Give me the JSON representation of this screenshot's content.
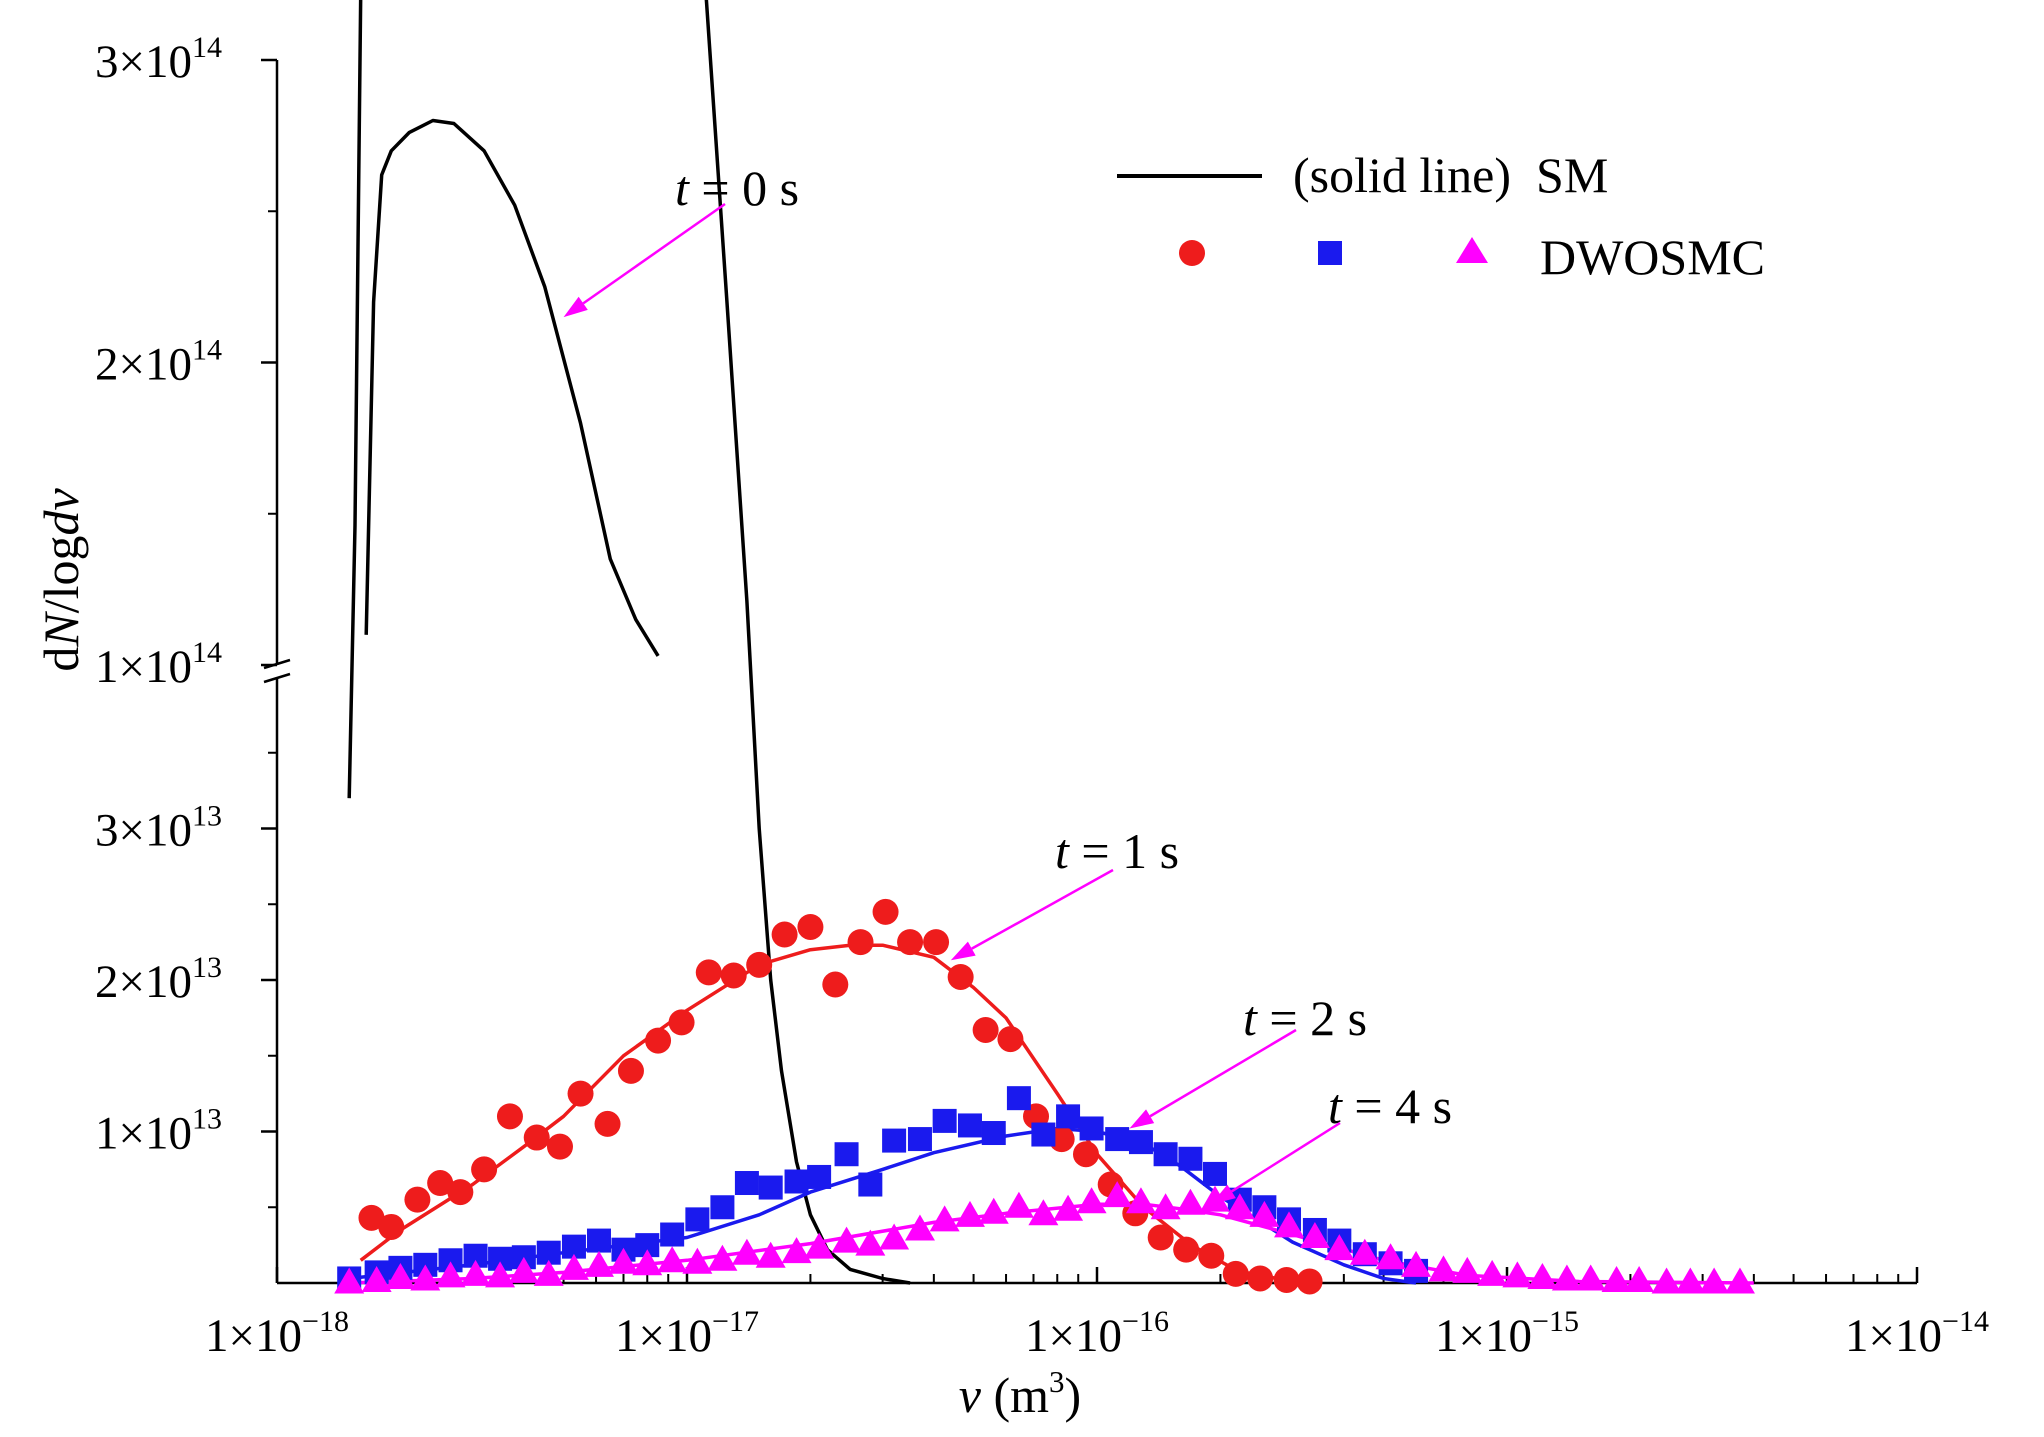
{
  "chart_data": {
    "type": "scatter",
    "xlabel": "v (m3)",
    "xlabel_parts": {
      "var": "v",
      "unit_open": " (m",
      "unit_exp": "3",
      "unit_close": ")"
    },
    "ylabel": "dN/logdv",
    "ylabel_parts": {
      "a": "d",
      "b": "N",
      "c": "/log",
      "d": "d",
      "e": "v"
    },
    "x_scale": "log",
    "xlim": [
      1e-18,
      1e-14
    ],
    "y_axis_broken": true,
    "y_break_at": 100000000000000.0,
    "ylim_lower": [
      0,
      40000000000000.0
    ],
    "ylim_upper": [
      100000000000000.0,
      300000000000000.0
    ],
    "x_ticks": [
      {
        "value": 1e-18,
        "base": "1×10",
        "exp": "−18"
      },
      {
        "value": 1e-17,
        "base": "1×10",
        "exp": "−17"
      },
      {
        "value": 1e-16,
        "base": "1×10",
        "exp": "−16"
      },
      {
        "value": 1e-15,
        "base": "1×10",
        "exp": "−15"
      },
      {
        "value": 1e-14,
        "base": "1×10",
        "exp": "−14"
      }
    ],
    "y_ticks_lower": [
      {
        "value": 10000000000000.0,
        "base": "1×10",
        "exp": "13"
      },
      {
        "value": 20000000000000.0,
        "base": "2×10",
        "exp": "13"
      },
      {
        "value": 30000000000000.0,
        "base": "3×10",
        "exp": "13"
      }
    ],
    "y_ticks_upper": [
      {
        "value": 100000000000000.0,
        "base": "1×10",
        "exp": "14"
      },
      {
        "value": 200000000000000.0,
        "base": "2×10",
        "exp": "14"
      },
      {
        "value": 300000000000000.0,
        "base": "3×10",
        "exp": "14"
      }
    ],
    "legend": {
      "line_label": "(solid line)  SM",
      "marker_label": "DWOSMC",
      "position": "top-right"
    },
    "lines": [
      {
        "name": "SM t = 0 s",
        "color": "#000000",
        "points": [
          [
            1.5e-18,
            32000000000000.0
          ],
          [
            1.55e-18,
            50000000000000.0
          ],
          [
            1.6e-18,
            85000000000000.0
          ],
          [
            1.65e-18,
            110000000000000.0
          ],
          [
            1.72e-18,
            220000000000000.0
          ],
          [
            1.8e-18,
            262000000000000.0
          ],
          [
            1.9e-18,
            270000000000000.0
          ],
          [
            2.1e-18,
            276000000000000.0
          ],
          [
            2.4e-18,
            280000000000000.0
          ],
          [
            2.7e-18,
            279000000000000.0
          ],
          [
            3.2e-18,
            270000000000000.0
          ],
          [
            3.8e-18,
            252000000000000.0
          ],
          [
            4.5e-18,
            225000000000000.0
          ],
          [
            5.5e-18,
            180000000000000.0
          ],
          [
            6.5e-18,
            135000000000000.0
          ],
          [
            7.5e-18,
            115000000000000.0
          ],
          [
            8.5e-18,
            103000000000000.0
          ],
          [
            9.5e-18,
            95000000000000.0
          ],
          [
            1.1e-17,
            87000000000000.0
          ],
          [
            1.25e-17,
            65000000000000.0
          ],
          [
            1.4e-17,
            45000000000000.0
          ],
          [
            1.5e-17,
            30000000000000.0
          ],
          [
            1.6e-17,
            20000000000000.0
          ],
          [
            1.7e-17,
            14000000000000.0
          ],
          [
            1.85e-17,
            8000000000000.0
          ],
          [
            2e-17,
            4500000000000.0
          ],
          [
            2.2e-17,
            2200000000000.0
          ],
          [
            2.5e-17,
            900000000000.0
          ],
          [
            3e-17,
            300000000000.0
          ],
          [
            3.5e-17,
            0
          ]
        ]
      },
      {
        "name": "SM t = 1 s",
        "color": "#ee1c1c",
        "points": [
          [
            1.6e-18,
            1500000000000.0
          ],
          [
            2e-18,
            3500000000000.0
          ],
          [
            3e-18,
            6500000000000.0
          ],
          [
            4e-18,
            9000000000000.0
          ],
          [
            5e-18,
            11000000000000.0
          ],
          [
            7e-18,
            15000000000000.0
          ],
          [
            1e-17,
            18000000000000.0
          ],
          [
            1.5e-17,
            21000000000000.0
          ],
          [
            2e-17,
            22000000000000.0
          ],
          [
            2.5e-17,
            22300000000000.0
          ],
          [
            3e-17,
            22300000000000.0
          ],
          [
            4e-17,
            21500000000000.0
          ],
          [
            5e-17,
            19500000000000.0
          ],
          [
            6e-17,
            17500000000000.0
          ],
          [
            8e-17,
            12500000000000.0
          ],
          [
            1e-16,
            8500000000000.0
          ],
          [
            1.3e-16,
            5000000000000.0
          ],
          [
            1.7e-16,
            2500000000000.0
          ],
          [
            2.2e-16,
            800000000000.0
          ],
          [
            3e-16,
            100000000000.0
          ],
          [
            3.5e-16,
            0
          ]
        ]
      },
      {
        "name": "SM t = 2 s",
        "color": "#1a1aee",
        "points": [
          [
            1.5e-18,
            300000000000.0
          ],
          [
            3e-18,
            1200000000000.0
          ],
          [
            5e-18,
            2000000000000.0
          ],
          [
            1e-17,
            3000000000000.0
          ],
          [
            1.5e-17,
            4500000000000.0
          ],
          [
            2e-17,
            6000000000000.0
          ],
          [
            3e-17,
            7500000000000.0
          ],
          [
            4e-17,
            8600000000000.0
          ],
          [
            6e-17,
            9700000000000.0
          ],
          [
            8e-17,
            10200000000000.0
          ],
          [
            1e-16,
            10000000000000.0
          ],
          [
            1.3e-16,
            9200000000000.0
          ],
          [
            1.6e-16,
            7700000000000.0
          ],
          [
            2e-16,
            5700000000000.0
          ],
          [
            3e-16,
            2700000000000.0
          ],
          [
            4e-16,
            1200000000000.0
          ],
          [
            5e-16,
            300000000000.0
          ],
          [
            6e-16,
            0
          ]
        ]
      },
      {
        "name": "SM t = 4 s",
        "color": "#ff00ff",
        "points": [
          [
            1.5e-18,
            0
          ],
          [
            3e-18,
            300000000000.0
          ],
          [
            5e-18,
            700000000000.0
          ],
          [
            1e-17,
            1500000000000.0
          ],
          [
            2e-17,
            2600000000000.0
          ],
          [
            4e-17,
            4000000000000.0
          ],
          [
            6e-17,
            4600000000000.0
          ],
          [
            1e-16,
            5200000000000.0
          ],
          [
            1.3e-16,
            5200000000000.0
          ],
          [
            1.6e-16,
            4900000000000.0
          ],
          [
            2e-16,
            4500000000000.0
          ],
          [
            3e-16,
            3200000000000.0
          ],
          [
            5e-16,
            1500000000000.0
          ],
          [
            8e-16,
            500000000000.0
          ],
          [
            1.5e-15,
            100000000000.0
          ],
          [
            4e-15,
            0
          ]
        ]
      }
    ],
    "series": [
      {
        "name": "DWOSMC t = 1 s",
        "marker": "circle",
        "color": "#ee1c1c",
        "x": [
          1.7e-18,
          1.9e-18,
          2.2e-18,
          2.5e-18,
          2.8e-18,
          3.2e-18,
          3.7e-18,
          4.3e-18,
          4.9e-18,
          5.5e-18,
          6.4e-18,
          7.3e-18,
          8.5e-18,
          9.7e-18,
          1.13e-17,
          1.3e-17,
          1.5e-17,
          1.73e-17,
          2e-17,
          2.3e-17,
          2.65e-17,
          3.05e-17,
          3.5e-17,
          4.05e-17,
          4.65e-17,
          5.35e-17,
          6.15e-17,
          7.1e-17,
          8.2e-17,
          9.4e-17,
          1.08e-16,
          1.24e-16,
          1.43e-16,
          1.65e-16,
          1.9e-16,
          2.18e-16,
          2.5e-16,
          2.9e-16,
          3.3e-16
        ],
        "y": [
          4300000000000.0,
          3700000000000.0,
          5500000000000.0,
          6600000000000.0,
          6000000000000.0,
          7500000000000.0,
          11000000000000.0,
          9600000000000.0,
          9000000000000.0,
          12500000000000.0,
          10500000000000.0,
          14000000000000.0,
          16000000000000.0,
          17200000000000.0,
          20500000000000.0,
          20300000000000.0,
          21000000000000.0,
          23000000000000.0,
          23500000000000.0,
          19700000000000.0,
          22500000000000.0,
          24500000000000.0,
          22500000000000.0,
          22500000000000.0,
          20200000000000.0,
          16700000000000.0,
          16100000000000.0,
          11000000000000.0,
          9500000000000.0,
          8500000000000.0,
          6500000000000.0,
          4600000000000.0,
          3000000000000.0,
          2200000000000.0,
          1800000000000.0,
          600000000000.0,
          300000000000.0,
          200000000000.0,
          100000000000.0
        ]
      },
      {
        "name": "DWOSMC t = 2 s",
        "marker": "square",
        "color": "#1a1aee",
        "x": [
          1.5e-18,
          1.75e-18,
          2e-18,
          2.3e-18,
          2.65e-18,
          3.05e-18,
          3.5e-18,
          4e-18,
          4.6e-18,
          5.3e-18,
          6.1e-18,
          7e-18,
          8e-18,
          9.2e-18,
          1.06e-17,
          1.22e-17,
          1.4e-17,
          1.6e-17,
          1.85e-17,
          2.1e-17,
          2.45e-17,
          2.8e-17,
          3.2e-17,
          3.7e-17,
          4.25e-17,
          4.9e-17,
          5.6e-17,
          6.45e-17,
          7.4e-17,
          8.5e-17,
          9.7e-17,
          1.12e-16,
          1.28e-16,
          1.47e-16,
          1.69e-16,
          1.94e-16,
          2.23e-16,
          2.56e-16,
          2.94e-16,
          3.4e-16,
          3.9e-16,
          4.5e-16,
          5.2e-16,
          6e-16
        ],
        "y": [
          300000000000.0,
          700000000000.0,
          1000000000000.0,
          1200000000000.0,
          1500000000000.0,
          1800000000000.0,
          1600000000000.0,
          1700000000000.0,
          2000000000000.0,
          2400000000000.0,
          2800000000000.0,
          2200000000000.0,
          2500000000000.0,
          3200000000000.0,
          4200000000000.0,
          5000000000000.0,
          6600000000000.0,
          6300000000000.0,
          6700000000000.0,
          7000000000000.0,
          8500000000000.0,
          6500000000000.0,
          9400000000000.0,
          9500000000000.0,
          10700000000000.0,
          10400000000000.0,
          9900000000000.0,
          12200000000000.0,
          9800000000000.0,
          11000000000000.0,
          10200000000000.0,
          9500000000000.0,
          9300000000000.0,
          8500000000000.0,
          8200000000000.0,
          7200000000000.0,
          5500000000000.0,
          5000000000000.0,
          4200000000000.0,
          3500000000000.0,
          2800000000000.0,
          1900000000000.0,
          1300000000000.0,
          800000000000.0
        ]
      },
      {
        "name": "DWOSMC t = 4 s",
        "marker": "triangle",
        "color": "#ff00ff",
        "x": [
          1.5e-18,
          1.75e-18,
          2e-18,
          2.3e-18,
          2.65e-18,
          3.05e-18,
          3.5e-18,
          4e-18,
          4.6e-18,
          5.3e-18,
          6.1e-18,
          7e-18,
          8e-18,
          9.2e-18,
          1.06e-17,
          1.22e-17,
          1.4e-17,
          1.6e-17,
          1.85e-17,
          2.1e-17,
          2.45e-17,
          2.8e-17,
          3.2e-17,
          3.7e-17,
          4.25e-17,
          4.9e-17,
          5.6e-17,
          6.45e-17,
          7.4e-17,
          8.5e-17,
          9.7e-17,
          1.12e-16,
          1.28e-16,
          1.47e-16,
          1.69e-16,
          1.94e-16,
          2.23e-16,
          2.56e-16,
          2.94e-16,
          3.4e-16,
          3.9e-16,
          4.5e-16,
          5.2e-16,
          6e-16,
          7e-16,
          8e-16,
          9.2e-16,
          1.06e-15,
          1.22e-15,
          1.4e-15,
          1.6e-15,
          1.85e-15,
          2.1e-15,
          2.45e-15,
          2.8e-15,
          3.2e-15,
          3.7e-15
        ],
        "y": [
          100000000000.0,
          200000000000.0,
          400000000000.0,
          300000000000.0,
          500000000000.0,
          600000000000.0,
          500000000000.0,
          800000000000.0,
          600000000000.0,
          1000000000000.0,
          1200000000000.0,
          1400000000000.0,
          1300000000000.0,
          1500000000000.0,
          1400000000000.0,
          1600000000000.0,
          2000000000000.0,
          1800000000000.0,
          2100000000000.0,
          2400000000000.0,
          2800000000000.0,
          2600000000000.0,
          3000000000000.0,
          3600000000000.0,
          4200000000000.0,
          4500000000000.0,
          4700000000000.0,
          5100000000000.0,
          4600000000000.0,
          4900000000000.0,
          5400000000000.0,
          5800000000000.0,
          5400000000000.0,
          5000000000000.0,
          5300000000000.0,
          5500000000000.0,
          5000000000000.0,
          4500000000000.0,
          3800000000000.0,
          3100000000000.0,
          2300000000000.0,
          2000000000000.0,
          1700000000000.0,
          1200000000000.0,
          900000000000.0,
          800000000000.0,
          600000000000.0,
          500000000000.0,
          400000000000.0,
          300000000000.0,
          300000000000.0,
          200000000000.0,
          200000000000.0,
          100000000000.0,
          100000000000.0,
          100000000000.0,
          100000000000.0
        ]
      }
    ],
    "annotations": [
      {
        "var": "t",
        "text": " = 0 s",
        "arrow_to": [
          5e-18,
          215000000000000.0
        ]
      },
      {
        "var": "t",
        "text": " = 1 s",
        "arrow_to": [
          4.4e-17,
          21300000000000.0
        ]
      },
      {
        "var": "t",
        "text": " = 2 s",
        "arrow_to": [
          1.2e-16,
          10200000000000.0
        ]
      },
      {
        "var": "t",
        "text": " = 4 s",
        "arrow_to": [
          1.9e-16,
          5200000000000.0
        ]
      }
    ]
  }
}
